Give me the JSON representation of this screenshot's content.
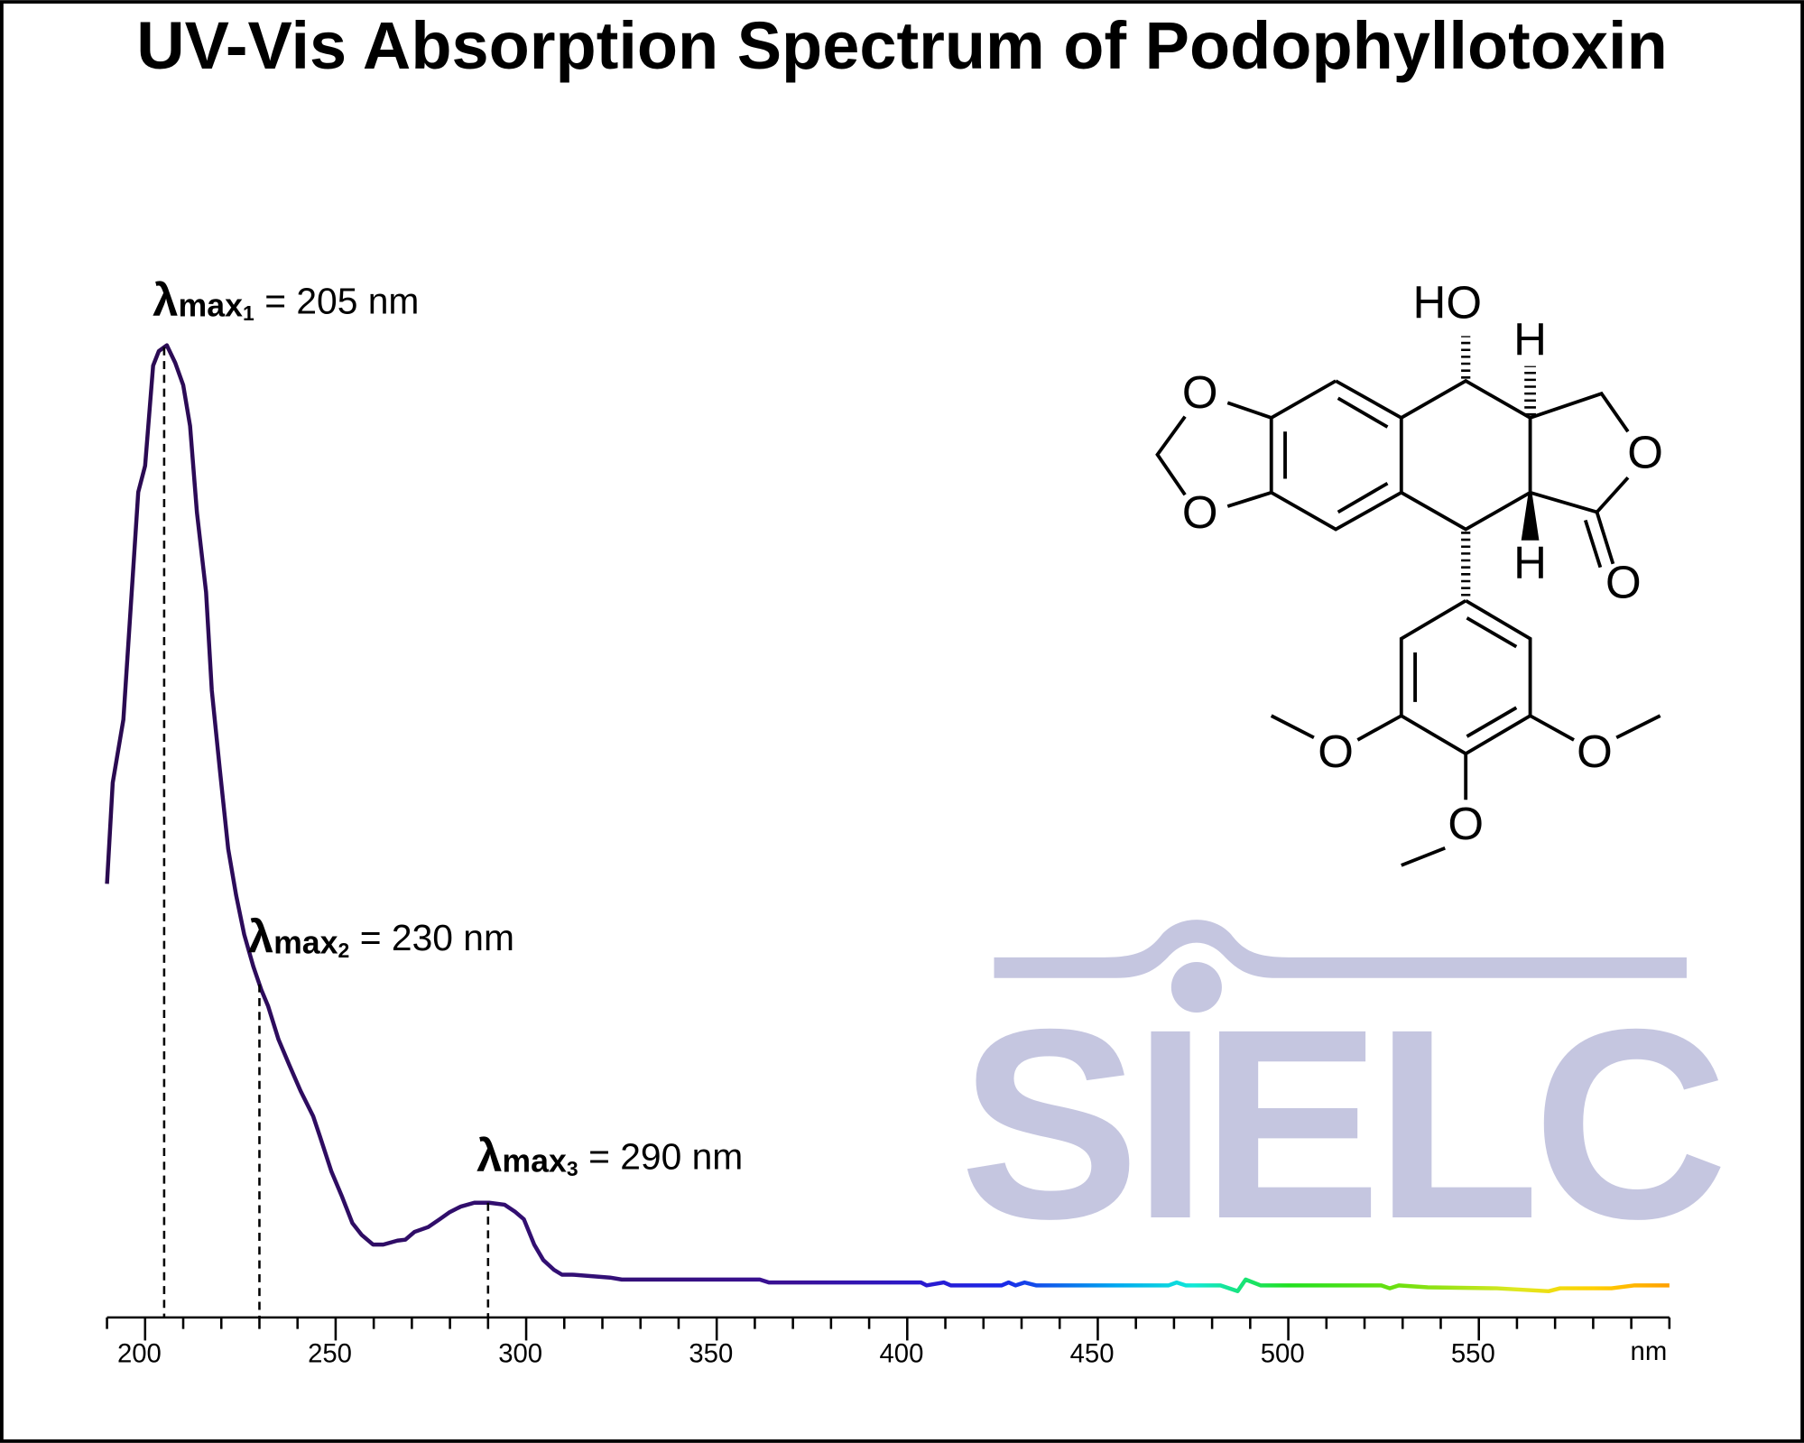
{
  "chart_data": {
    "type": "line",
    "title": "UV-Vis Absorption Spectrum of Podophyllotoxin",
    "x_label": "nm",
    "x": [
      190.0,
      191.5,
      194.3,
      198.2,
      200.0,
      202.1,
      203.6,
      205.7,
      207.9,
      210.0,
      211.8,
      213.6,
      216.0,
      217.5,
      219.6,
      221.8,
      223.9,
      226.0,
      228.4,
      230.5,
      232.3,
      235.0,
      237.8,
      240.8,
      244.1,
      245.9,
      248.9,
      251.7,
      254.4,
      256.8,
      259.8,
      262.5,
      266.2,
      268.3,
      270.7,
      274.3,
      277.3,
      279.8,
      282.8,
      286.4,
      290.3,
      294.3,
      297.0,
      299.4,
      302.1,
      304.5,
      307.3,
      309.4,
      312.1,
      322.0,
      325.1,
      361.3,
      363.7,
      403.6,
      405.1,
      409.6,
      411.4,
      424.8,
      426.6,
      428.4,
      430.8,
      433.8,
      468.6,
      470.7,
      473.1,
      482.2,
      486.7,
      488.8,
      492.7,
      524.4,
      526.6,
      529.0,
      536.6,
      554.7,
      568.3,
      571.3,
      584.8,
      590.9,
      596.9,
      600.0
    ],
    "values": [
      0.446,
      0.55,
      0.615,
      0.849,
      0.876,
      0.979,
      0.994,
      1.0,
      0.982,
      0.959,
      0.917,
      0.828,
      0.746,
      0.645,
      0.564,
      0.482,
      0.434,
      0.394,
      0.361,
      0.337,
      0.32,
      0.286,
      0.26,
      0.233,
      0.207,
      0.186,
      0.15,
      0.124,
      0.097,
      0.085,
      0.075,
      0.075,
      0.079,
      0.08,
      0.088,
      0.093,
      0.101,
      0.108,
      0.114,
      0.118,
      0.118,
      0.116,
      0.109,
      0.101,
      0.075,
      0.059,
      0.049,
      0.044,
      0.044,
      0.041,
      0.039,
      0.039,
      0.036,
      0.036,
      0.033,
      0.036,
      0.033,
      0.033,
      0.036,
      0.033,
      0.036,
      0.033,
      0.033,
      0.036,
      0.033,
      0.033,
      0.027,
      0.039,
      0.033,
      0.033,
      0.03,
      0.033,
      0.031,
      0.03,
      0.027,
      0.03,
      0.03,
      0.033,
      0.033,
      0.033
    ],
    "color_stops": [
      {
        "x": 190,
        "color": "#2a0a50"
      },
      {
        "x": 330,
        "color": "#34107a"
      },
      {
        "x": 370,
        "color": "#3a1096"
      },
      {
        "x": 405,
        "color": "#2a1ad0"
      },
      {
        "x": 425,
        "color": "#1a28e8"
      },
      {
        "x": 455,
        "color": "#00a8f0"
      },
      {
        "x": 475,
        "color": "#10e8d8"
      },
      {
        "x": 500,
        "color": "#20e020"
      },
      {
        "x": 530,
        "color": "#70e010"
      },
      {
        "x": 560,
        "color": "#e0e820"
      },
      {
        "x": 580,
        "color": "#ffd000"
      },
      {
        "x": 600,
        "color": "#ffa000"
      }
    ],
    "xlim": [
      190,
      600
    ],
    "ylim": [
      0,
      1
    ],
    "xticks": [
      200,
      250,
      300,
      350,
      400,
      450,
      500,
      550
    ],
    "xminorticks": [
      190,
      210,
      220,
      230,
      240,
      260,
      270,
      280,
      290,
      310,
      320,
      330,
      340,
      360,
      370,
      380,
      390,
      410,
      420,
      430,
      440,
      460,
      470,
      480,
      490,
      510,
      520,
      530,
      540,
      560,
      570,
      580,
      590,
      600
    ],
    "annotations": [
      {
        "x": 205,
        "symbol": "λ",
        "sub": "max",
        "index": "1",
        "text": "= 205 nm"
      },
      {
        "x": 230,
        "symbol": "λ",
        "sub": "max",
        "index": "2",
        "text": "= 230 nm"
      },
      {
        "x": 290,
        "symbol": "λ",
        "sub": "max",
        "index": "3",
        "text": "= 290 nm"
      }
    ]
  },
  "watermark": "SIELC",
  "structure_labels": [
    "HO",
    "H",
    "H",
    "O",
    "O",
    "O",
    "O",
    "O",
    "O",
    "O"
  ]
}
